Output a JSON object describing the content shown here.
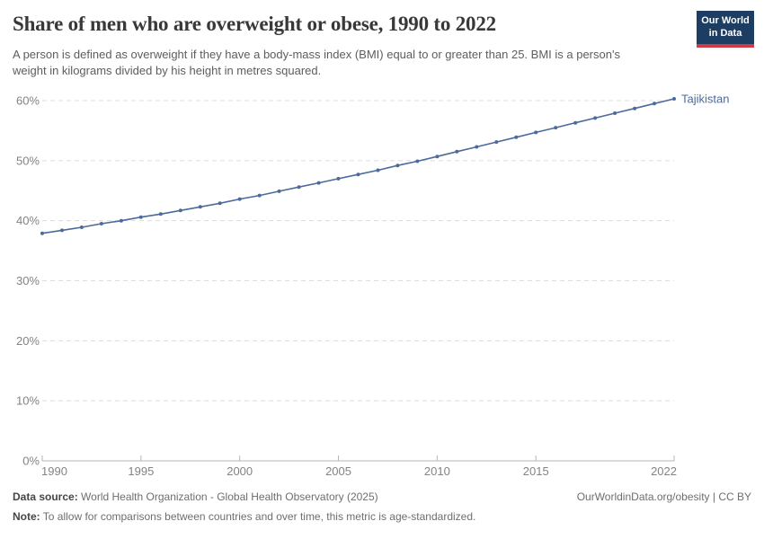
{
  "header": {
    "title": "Share of men who are overweight or obese, 1990 to 2022",
    "subtitle": "A person is defined as overweight if they have a body-mass index (BMI) equal to or greater than 25. BMI is a person's weight in kilograms divided by his height in metres squared.",
    "logo": {
      "line1": "Our World",
      "line2": "in Data",
      "bg_color": "#1d3d63",
      "accent_color": "#cf3b44"
    }
  },
  "chart_data": {
    "type": "line",
    "title": "Share of men who are overweight or obese, 1990 to 2022",
    "xlabel": "",
    "ylabel": "",
    "xlim": [
      1990,
      2022
    ],
    "ylim": [
      0,
      60
    ],
    "x_ticks": [
      1990,
      1995,
      2000,
      2005,
      2010,
      2015,
      2022
    ],
    "y_ticks": [
      0,
      10,
      20,
      30,
      40,
      50,
      60
    ],
    "y_tick_labels": [
      "0%",
      "10%",
      "20%",
      "30%",
      "40%",
      "50%",
      "60%"
    ],
    "grid": "horizontal-dashed",
    "legend_position": "end-of-line-label",
    "colors": {
      "grid": "#dcdcdc",
      "axis": "#b5b5b5",
      "tick_label": "#838383"
    },
    "series": [
      {
        "name": "Tajikistan",
        "color": "#4C6A9C",
        "years": [
          1990,
          1991,
          1992,
          1993,
          1994,
          1995,
          1996,
          1997,
          1998,
          1999,
          2000,
          2001,
          2002,
          2003,
          2004,
          2005,
          2006,
          2007,
          2008,
          2009,
          2010,
          2011,
          2012,
          2013,
          2014,
          2015,
          2016,
          2017,
          2018,
          2019,
          2020,
          2021,
          2022
        ],
        "values": [
          37.9,
          38.4,
          38.9,
          39.5,
          40.0,
          40.6,
          41.1,
          41.7,
          42.3,
          42.9,
          43.6,
          44.2,
          44.9,
          45.6,
          46.3,
          47.0,
          47.7,
          48.4,
          49.2,
          49.9,
          50.7,
          51.5,
          52.3,
          53.1,
          53.9,
          54.7,
          55.5,
          56.3,
          57.1,
          57.9,
          58.7,
          59.5,
          60.3
        ]
      }
    ]
  },
  "footer": {
    "data_source_label": "Data source:",
    "data_source_text": " World Health Organization - Global Health Observatory (2025)",
    "note_label": "Note:",
    "note_text": " To allow for comparisons between countries and over time, this metric is age-standardized.",
    "right_text": "OurWorldinData.org/obesity | CC BY"
  }
}
